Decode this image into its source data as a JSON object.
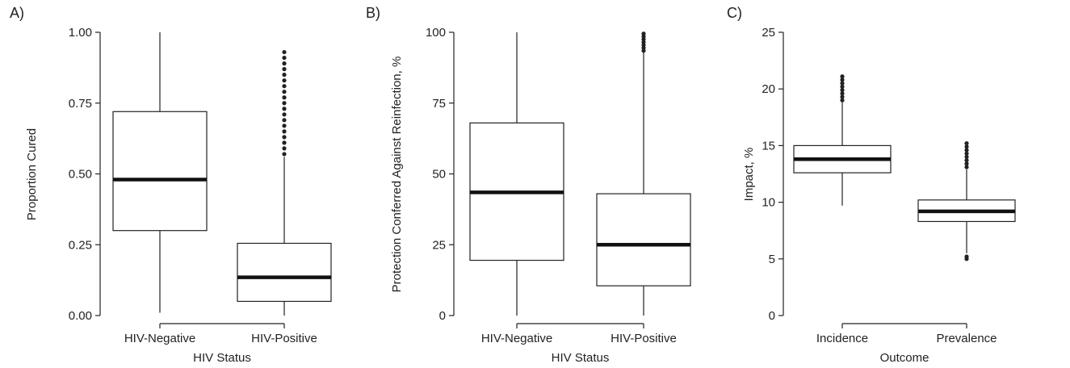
{
  "chart_data": [
    {
      "type": "box",
      "panel_label": "A)",
      "xlabel": "HIV Status",
      "ylabel": "Proportion Cured",
      "ylim": [
        0,
        1
      ],
      "yticks": [
        0,
        0.25,
        0.5,
        0.75,
        1
      ],
      "ytick_labels": [
        "0.00",
        "0.25",
        "0.50",
        "0.75",
        "1.00"
      ],
      "categories": [
        "HIV-Negative",
        "HIV-Positive"
      ],
      "boxes": [
        {
          "category": "HIV-Negative",
          "whisker_low": 0.01,
          "q1": 0.3,
          "median": 0.48,
          "q3": 0.72,
          "whisker_high": 1.0,
          "outliers": []
        },
        {
          "category": "HIV-Positive",
          "whisker_low": 0.0,
          "q1": 0.05,
          "median": 0.135,
          "q3": 0.255,
          "whisker_high": 0.56,
          "outliers": [
            0.57,
            0.59,
            0.61,
            0.63,
            0.65,
            0.67,
            0.69,
            0.71,
            0.73,
            0.75,
            0.77,
            0.79,
            0.81,
            0.83,
            0.85,
            0.87,
            0.89,
            0.91,
            0.93
          ]
        }
      ]
    },
    {
      "type": "box",
      "panel_label": "B)",
      "xlabel": "HIV Status",
      "ylabel": "Protection Conferred Against Reinfection, %",
      "ylim": [
        0,
        100
      ],
      "yticks": [
        0,
        25,
        50,
        75,
        100
      ],
      "ytick_labels": [
        "0",
        "25",
        "50",
        "75",
        "100"
      ],
      "categories": [
        "HIV-Negative",
        "HIV-Positive"
      ],
      "boxes": [
        {
          "category": "HIV-Negative",
          "whisker_low": 0.0,
          "q1": 19.5,
          "median": 43.5,
          "q3": 68.0,
          "whisker_high": 100.0,
          "outliers": []
        },
        {
          "category": "HIV-Positive",
          "whisker_low": 0.0,
          "q1": 10.5,
          "median": 25.0,
          "q3": 43.0,
          "whisker_high": 93.0,
          "outliers": [
            93.5,
            94.5,
            95.5,
            96.5,
            97.5,
            98.5,
            99.5
          ]
        }
      ]
    },
    {
      "type": "box",
      "panel_label": "C)",
      "xlabel": "Outcome",
      "ylabel": "Impact, %",
      "ylim": [
        0,
        25
      ],
      "yticks": [
        0,
        5,
        10,
        15,
        20,
        25
      ],
      "ytick_labels": [
        "0",
        "5",
        "10",
        "15",
        "20",
        "25"
      ],
      "categories": [
        "Incidence",
        "Prevalence"
      ],
      "boxes": [
        {
          "category": "Incidence",
          "whisker_low": 9.7,
          "q1": 12.6,
          "median": 13.8,
          "q3": 15.0,
          "whisker_high": 18.8,
          "outliers": [
            19.0,
            19.3,
            19.6,
            19.9,
            20.2,
            20.5,
            20.8,
            21.1
          ]
        },
        {
          "category": "Prevalence",
          "whisker_low": 5.5,
          "q1": 8.3,
          "median": 9.2,
          "q3": 10.2,
          "whisker_high": 12.9,
          "outliers": [
            5.0,
            5.2,
            13.1,
            13.4,
            13.7,
            14.0,
            14.3,
            14.6,
            14.9,
            15.2
          ]
        }
      ]
    }
  ]
}
